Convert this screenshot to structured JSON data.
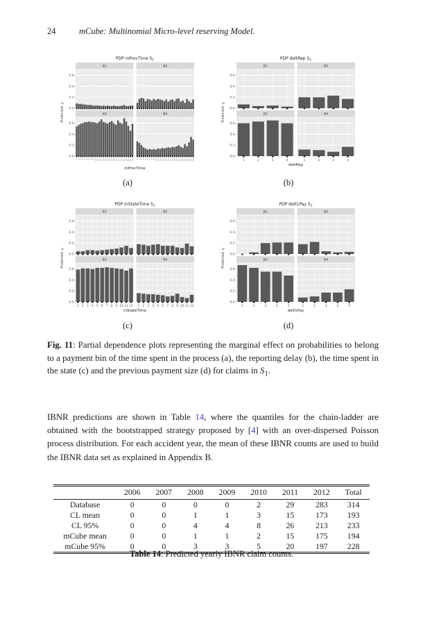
{
  "page": {
    "number": "24",
    "running_title": "mCube: Multinomial Micro-level reserving Model."
  },
  "figure": {
    "sublabels": [
      "(a)",
      "(b)",
      "(c)",
      "(d)"
    ],
    "caption_bold": "Fig. 11",
    "caption_text": ": Partial dependence plots representing the marginal effect on probabilities to belong to a payment bin of the time spent in the process (a), the reporting delay (b), the time spent in the state (c) and the previous payment size (d) for claims in ",
    "caption_var": "S",
    "caption_var_sub": "1",
    "caption_end": "."
  },
  "paragraph": {
    "p1": "IBNR predictions are shown in Table ",
    "ref1": "14",
    "p2": ", where the quantiles for the chain-ladder are obtained with the bootstrapped strategy proposed by [",
    "ref2": "4",
    "p3": "] with an over-dispersed Poisson process distribution. For each accident year, the mean of these IBNR counts are used to build the IBNR data set as explained in Appendix B."
  },
  "colors": {
    "bar": "#595959",
    "panel": "#ebebeb",
    "strip": "#d9d9d9",
    "grid_major": "#ffffff",
    "grid_minor": "#f7f7f7",
    "rug": "#111111",
    "link": "#4343cf"
  },
  "chart_data": [
    {
      "type": "bar",
      "id": "a",
      "title": "PDP inProcTime S",
      "title_sub": "1",
      "ylabel": "Predicted .y",
      "xlabel": "inProcTime",
      "facets": [
        "B1",
        "B2",
        "B3",
        "B4"
      ],
      "x_tick_style": "dense",
      "categories": [
        "1",
        "2",
        "3",
        "4",
        "5",
        "6",
        "7",
        "8",
        "9",
        "10",
        "11",
        "12",
        "13",
        "14",
        "15",
        "16",
        "17",
        "18",
        "19",
        "20",
        "21",
        "22",
        "23",
        "24",
        "25",
        "26",
        "27",
        "28"
      ],
      "series": [
        {
          "name": "B1",
          "values": [
            0.09,
            0.08,
            0.08,
            0.07,
            0.07,
            0.06,
            0.06,
            0.06,
            0.05,
            0.05,
            0.05,
            0.05,
            0.04,
            0.05,
            0.04,
            0.05,
            0.04,
            0.04,
            0.05,
            0.04,
            0.04,
            0.04,
            0.05,
            0.06,
            0.04,
            0.04,
            0.05,
            0.05
          ]
        },
        {
          "name": "B2",
          "values": [
            0.1,
            0.17,
            0.19,
            0.18,
            0.13,
            0.17,
            0.16,
            0.14,
            0.17,
            0.15,
            0.17,
            0.16,
            0.15,
            0.13,
            0.16,
            0.12,
            0.15,
            0.16,
            0.13,
            0.17,
            0.18,
            0.12,
            0.14,
            0.1,
            0.17,
            0.13,
            0.1,
            0.16
          ]
        },
        {
          "name": "B3",
          "values": [
            0.54,
            0.57,
            0.59,
            0.6,
            0.62,
            0.62,
            0.63,
            0.62,
            0.62,
            0.61,
            0.6,
            0.63,
            0.67,
            0.62,
            0.61,
            0.59,
            0.62,
            0.64,
            0.6,
            0.57,
            0.65,
            0.61,
            0.59,
            0.69,
            0.63,
            0.55,
            0.46,
            0.59
          ]
        },
        {
          "name": "B4",
          "values": [
            0.27,
            0.24,
            0.2,
            0.16,
            0.14,
            0.12,
            0.13,
            0.12,
            0.13,
            0.12,
            0.14,
            0.13,
            0.15,
            0.14,
            0.15,
            0.16,
            0.15,
            0.17,
            0.16,
            0.18,
            0.2,
            0.17,
            0.15,
            0.22,
            0.18,
            0.25,
            0.35,
            0.3
          ]
        }
      ],
      "ylim": [
        0,
        0.72
      ],
      "yticks": [
        "0.0",
        "0.2",
        "0.4",
        "0.6"
      ],
      "grid": true,
      "legend": "none"
    },
    {
      "type": "bar",
      "id": "b",
      "title": "PDP deltRep S",
      "title_sub": "1",
      "ylabel": "Predicted .y",
      "xlabel": "deltRep",
      "facets": [
        "B1",
        "B2",
        "B3",
        "B4"
      ],
      "x_tick_style": "numeric",
      "categories": [
        "1",
        "2",
        "3",
        "4"
      ],
      "series": [
        {
          "name": "B1",
          "values": [
            0.07,
            0.04,
            0.05,
            0.03
          ]
        },
        {
          "name": "B2",
          "values": [
            0.2,
            0.2,
            0.23,
            0.17
          ]
        },
        {
          "name": "B3",
          "values": [
            0.6,
            0.63,
            0.65,
            0.6
          ]
        },
        {
          "name": "B4",
          "values": [
            0.12,
            0.11,
            0.08,
            0.17
          ]
        }
      ],
      "ylim": [
        0,
        0.72
      ],
      "yticks": [
        "0.0",
        "0.2",
        "0.4",
        "0.6"
      ],
      "grid": true,
      "legend": "none"
    },
    {
      "type": "bar",
      "id": "c",
      "title": "PDP inStateTime S",
      "title_sub": "1",
      "ylabel": "Predicted .y",
      "xlabel": "inStateTime",
      "facets": [
        "B1",
        "B2",
        "B3",
        "B4"
      ],
      "x_tick_style": "numeric",
      "categories": [
        "1",
        "2",
        "3",
        "4",
        "5",
        "6",
        "7",
        "8",
        "9",
        "10",
        "11",
        "12"
      ],
      "series": [
        {
          "name": "B1",
          "values": [
            0.05,
            0.05,
            0.07,
            0.07,
            0.06,
            0.07,
            0.08,
            0.09,
            0.1,
            0.12,
            0.15,
            0.11
          ]
        },
        {
          "name": "B2",
          "values": [
            0.18,
            0.17,
            0.15,
            0.17,
            0.18,
            0.15,
            0.15,
            0.15,
            0.12,
            0.11,
            0.19,
            0.14
          ]
        },
        {
          "name": "B3",
          "values": [
            0.59,
            0.61,
            0.61,
            0.6,
            0.62,
            0.62,
            0.63,
            0.62,
            0.61,
            0.6,
            0.57,
            0.61
          ]
        },
        {
          "name": "B4",
          "values": [
            0.16,
            0.15,
            0.14,
            0.14,
            0.13,
            0.12,
            0.1,
            0.11,
            0.15,
            0.09,
            0.07,
            0.13
          ]
        }
      ],
      "ylim": [
        0,
        0.72
      ],
      "yticks": [
        "0.0",
        "0.2",
        "0.4",
        "0.6"
      ],
      "grid": true,
      "legend": "none"
    },
    {
      "type": "bar",
      "id": "d",
      "title": "PDP delt1Pay S",
      "title_sub": "1",
      "ylabel": "Predicted .y",
      "xlabel": "delt1Pay",
      "facets": [
        "B1",
        "B2",
        "B3",
        "B4"
      ],
      "x_tick_style": "numeric",
      "categories": [
        "1",
        "2",
        "3",
        "4",
        "5"
      ],
      "series": [
        {
          "name": "B1",
          "values": [
            0.0,
            0.03,
            0.2,
            0.21,
            0.21
          ]
        },
        {
          "name": "B2",
          "values": [
            0.18,
            0.22,
            0.05,
            0.03,
            0.04
          ]
        },
        {
          "name": "B3",
          "values": [
            0.67,
            0.62,
            0.55,
            0.55,
            0.48
          ]
        },
        {
          "name": "B4",
          "values": [
            0.08,
            0.1,
            0.17,
            0.17,
            0.23
          ]
        }
      ],
      "ylim": [
        0,
        0.72
      ],
      "yticks": [
        "0.0",
        "0.2",
        "0.4",
        "0.6"
      ],
      "grid": true,
      "legend": "none"
    }
  ],
  "table": {
    "columns": [
      "",
      "2006",
      "2007",
      "2008",
      "2009",
      "2010",
      "2011",
      "2012",
      "Total"
    ],
    "rows": [
      {
        "label": "Database",
        "values": [
          "0",
          "0",
          "0",
          "0",
          "2",
          "29",
          "283",
          "314"
        ]
      },
      {
        "label": "CL mean",
        "values": [
          "0",
          "0",
          "1",
          "1",
          "3",
          "15",
          "173",
          "193"
        ]
      },
      {
        "label": "CL 95%",
        "values": [
          "0",
          "0",
          "4",
          "4",
          "8",
          "26",
          "213",
          "233"
        ]
      },
      {
        "label": "mCube mean",
        "values": [
          "0",
          "0",
          "1",
          "1",
          "2",
          "15",
          "175",
          "194"
        ]
      },
      {
        "label": "mCube 95%",
        "values": [
          "0",
          "0",
          "3",
          "3",
          "5",
          "20",
          "197",
          "228"
        ]
      }
    ]
  },
  "table_caption": {
    "bold": "Table 14",
    "text": ": Predicted yearly IBNR claim counts."
  }
}
